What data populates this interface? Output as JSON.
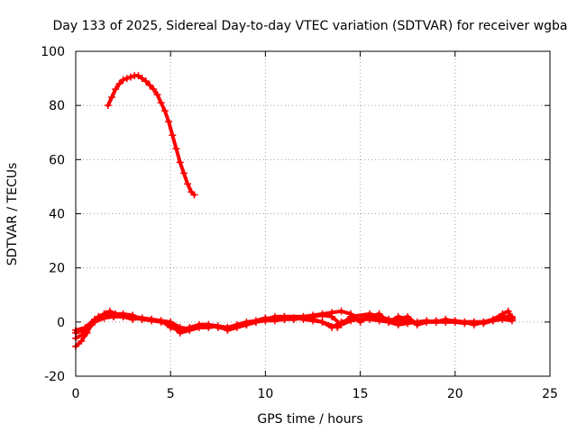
{
  "chart_data": {
    "type": "scatter",
    "title": "Day 133 of 2025, Sidereal Day-to-day VTEC variation (SDTVAR) for receiver wgba",
    "xlabel": "GPS time / hours",
    "ylabel": "SDTVAR / TECUs",
    "xlim": [
      0,
      25
    ],
    "ylim": [
      -20,
      100
    ],
    "xticks": [
      0,
      5,
      10,
      15,
      20,
      25
    ],
    "yticks": [
      -20,
      0,
      20,
      40,
      60,
      80,
      100
    ],
    "xtick_labels": [
      "0",
      "5",
      "10",
      "15",
      "20",
      "25"
    ],
    "ytick_labels": [
      "-20",
      "0",
      "20",
      "40",
      "60",
      "80",
      "100"
    ],
    "grid": true,
    "marker": "plus",
    "color": "#ff0000",
    "series": [
      {
        "name": "arc-high",
        "x": [
          1.7,
          1.9,
          2.1,
          2.3,
          2.5,
          2.7,
          2.9,
          3.1,
          3.3,
          3.5,
          3.7,
          3.9,
          4.1,
          4.3,
          4.5,
          4.7,
          4.9,
          5.1,
          5.3,
          5.5,
          5.7,
          5.9,
          6.1,
          6.25
        ],
        "y": [
          80,
          83,
          86,
          88,
          89.5,
          90,
          90.5,
          91,
          91,
          90,
          89,
          87.5,
          86,
          84,
          81,
          78,
          74,
          69,
          64,
          59,
          55,
          51,
          48,
          47
        ]
      },
      {
        "name": "trace-1",
        "x": [
          0.0,
          0.3,
          0.6,
          0.9,
          1.2,
          1.5,
          1.8,
          2.1,
          2.5,
          3.0,
          3.5,
          4.0,
          4.5,
          5.0,
          5.5,
          6.0,
          6.5,
          7.0,
          7.5,
          8.0,
          8.5,
          9.0,
          9.5,
          10.0,
          10.5,
          11.0,
          11.5,
          12.0,
          12.5,
          13.0,
          13.5,
          14.0,
          14.5,
          15.0,
          15.5,
          16.0,
          16.5,
          17.0,
          17.5,
          18.0,
          18.5,
          19.0,
          19.5,
          20.0,
          20.5,
          21.0,
          21.5,
          22.0,
          22.5,
          22.8,
          23.0
        ],
        "y": [
          -9,
          -7,
          -4,
          0,
          2,
          3,
          4,
          3,
          3,
          2.5,
          1,
          1,
          0.5,
          -2,
          -3,
          -2,
          -1,
          -1,
          -1.5,
          -2,
          -1,
          0,
          0.5,
          1.5,
          1,
          1,
          1.5,
          2,
          2.5,
          3,
          3.5,
          4,
          3,
          0,
          2,
          3,
          0,
          1,
          2,
          -1,
          0,
          0,
          1,
          0,
          0,
          -1,
          0,
          1,
          3,
          4,
          1
        ]
      },
      {
        "name": "trace-2",
        "x": [
          0.0,
          0.4,
          0.8,
          1.2,
          1.6,
          2.0,
          2.5,
          3.0,
          3.5,
          4.0,
          4.5,
          5.0,
          5.5,
          6.0,
          6.5,
          7.0,
          7.5,
          8.0,
          8.5,
          9.0,
          9.5,
          10.0,
          10.5,
          11.0,
          11.5,
          12.0,
          12.5,
          13.0,
          13.5,
          14.0,
          14.5,
          15.0,
          15.5,
          16.0,
          16.5,
          17.0,
          17.5,
          18.0,
          18.5,
          19.0,
          19.5,
          20.0,
          20.5,
          21.0,
          21.5,
          22.0,
          22.5,
          23.0
        ],
        "y": [
          -4,
          -3,
          -1,
          2,
          3,
          2,
          2,
          1.5,
          1,
          0.5,
          0,
          -1,
          -4,
          -3,
          -2,
          -2,
          -1.5,
          -3,
          -2,
          -1,
          0,
          1,
          2,
          2,
          1.5,
          1,
          0.5,
          0,
          -2,
          0,
          1,
          1,
          2,
          1,
          0,
          2,
          1,
          -1,
          0,
          0.5,
          0,
          0,
          -0.5,
          0,
          0,
          0.5,
          1,
          0.5
        ]
      },
      {
        "name": "trace-3",
        "x": [
          0.0,
          0.5,
          1.0,
          1.5,
          2.0,
          2.5,
          3.0,
          3.5,
          4.0,
          4.5,
          5.0,
          5.5,
          6.0,
          6.5,
          7.0,
          7.5,
          8.0,
          8.5,
          9.0,
          9.5,
          10.0,
          10.5,
          11.0,
          11.5,
          12.0,
          12.5,
          13.0,
          13.5,
          14.0,
          14.5,
          15.0,
          15.5,
          16.0,
          16.5,
          17.0,
          17.5,
          18.0,
          18.5,
          19.0,
          19.5,
          20.0,
          20.5,
          21.0,
          21.5,
          22.0,
          22.5,
          23.0
        ],
        "y": [
          -6,
          -4,
          0,
          1.5,
          2,
          2,
          1,
          1.5,
          1,
          0.5,
          0,
          -2,
          -2.5,
          -1,
          -1,
          -2,
          -2.5,
          -1.5,
          -1,
          0,
          0.5,
          0.5,
          1,
          1,
          1.5,
          2,
          2.5,
          2,
          -1,
          0.5,
          1,
          1,
          0.5,
          0,
          -1,
          -0.5,
          0,
          0.5,
          0,
          0.5,
          0.5,
          0,
          0,
          -0.5,
          0.5,
          2,
          1.5
        ]
      },
      {
        "name": "trace-4",
        "x": [
          0.0,
          0.5,
          1.0,
          1.5,
          2.0,
          3.0,
          4.0,
          5.0,
          6.0,
          7.0,
          8.0,
          9.0,
          10.0,
          11.0,
          12.0,
          13.0,
          13.8,
          14.5,
          15.5,
          16.5,
          17.5,
          18.5,
          19.5,
          20.5,
          21.5,
          22.5,
          23.0
        ],
        "y": [
          -3,
          -2,
          1,
          3,
          2.5,
          2,
          1,
          -1,
          -3,
          -1,
          -2,
          -1,
          1,
          2,
          2,
          0,
          -2,
          2,
          3,
          1,
          0,
          0,
          0,
          0,
          0,
          2,
          2
        ]
      }
    ]
  }
}
